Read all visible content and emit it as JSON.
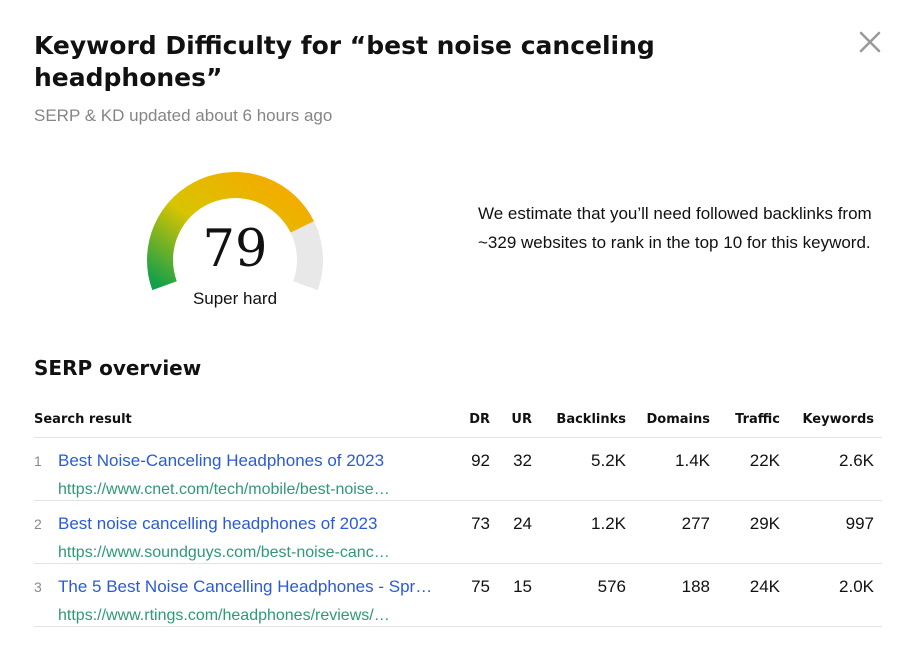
{
  "header": {
    "title": "Keyword Difficulty for “best noise canceling headphones”",
    "subtitle": "SERP & KD updated about 6 hours ago"
  },
  "difficulty": {
    "score": "79",
    "label": "Super hard",
    "score_fraction": 0.79,
    "estimate": "We estimate that you’ll need followed backlinks from ~329 websites to rank in the top 10 for this keyword."
  },
  "serp": {
    "section_title": "SERP overview",
    "columns": [
      "Search result",
      "DR",
      "UR",
      "Backlinks",
      "Domains",
      "Traffic",
      "Keywords"
    ],
    "rows": [
      {
        "position": "1",
        "title": "Best Noise-Canceling Headphones of 2023",
        "url": "https://www.cnet.com/tech/mobile/best-noise…",
        "dr": "92",
        "ur": "32",
        "backlinks": "5.2K",
        "domains": "1.4K",
        "traffic": "22K",
        "keywords": "2.6K"
      },
      {
        "position": "2",
        "title": "Best noise cancelling headphones of 2023",
        "url": "https://www.soundguys.com/best-noise-canc…",
        "dr": "73",
        "ur": "24",
        "backlinks": "1.2K",
        "domains": "277",
        "traffic": "29K",
        "keywords": "997"
      },
      {
        "position": "3",
        "title": "The 5 Best Noise Cancelling Headphones - Spr…",
        "url": "https://www.rtings.com/headphones/reviews/…",
        "dr": "75",
        "ur": "15",
        "backlinks": "576",
        "domains": "188",
        "traffic": "24K",
        "keywords": "2.0K"
      }
    ]
  },
  "colors": {
    "link": "#2a5bd7",
    "url": "#2e9a73",
    "gauge_start": "#14a04a",
    "gauge_mid": "#d8c400",
    "gauge_end": "#f8a800",
    "gauge_track": "#e8e8e8"
  },
  "icons": {
    "close": "close-icon"
  }
}
